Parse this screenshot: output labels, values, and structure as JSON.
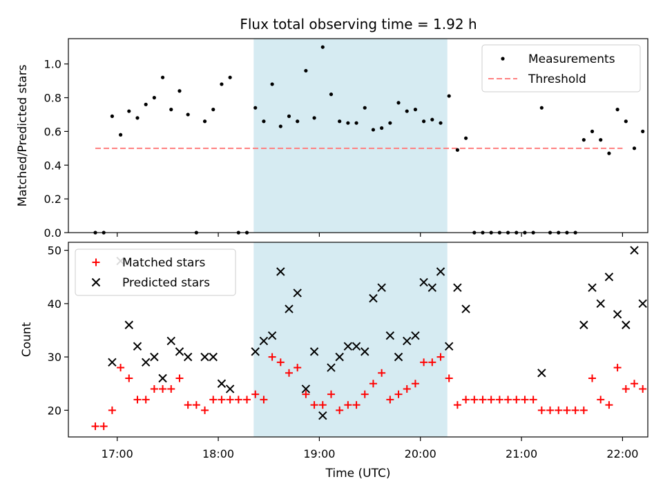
{
  "title": "Flux total observing time = 1.92 h",
  "colors": {
    "shade": "#add8e6",
    "measurement": "#000000",
    "threshold": "#ff7f7f",
    "matched": "#ff0000",
    "predicted": "#000000"
  },
  "chart_data": [
    {
      "type": "scatter",
      "ylabel": "Matched/Predicted stars",
      "ylim": [
        0,
        1.15
      ],
      "yticks": [
        "0.0",
        "0.2",
        "0.4",
        "0.6",
        "0.8",
        "1.0"
      ],
      "xlim": [
        "16:31",
        "22:15"
      ],
      "shaded_span": [
        "18:21",
        "20:16"
      ],
      "legend": {
        "position": "top-right",
        "entries": [
          {
            "label": "Measurements",
            "marker": "dot"
          },
          {
            "label": "Threshold",
            "marker": "dashed-line"
          }
        ]
      },
      "threshold": {
        "label": "Threshold",
        "value": 0.5,
        "x_range": [
          "16:47",
          "22:00"
        ]
      },
      "series": [
        {
          "name": "Measurements",
          "points": [
            [
              "16:47",
              0.0
            ],
            [
              "16:52",
              0.0
            ],
            [
              "16:57",
              0.69
            ],
            [
              "17:02",
              0.58
            ],
            [
              "17:07",
              0.72
            ],
            [
              "17:12",
              0.68
            ],
            [
              "17:17",
              0.76
            ],
            [
              "17:22",
              0.8
            ],
            [
              "17:27",
              0.92
            ],
            [
              "17:32",
              0.73
            ],
            [
              "17:37",
              0.84
            ],
            [
              "17:42",
              0.7
            ],
            [
              "17:47",
              0.0
            ],
            [
              "17:52",
              0.66
            ],
            [
              "17:57",
              0.73
            ],
            [
              "18:02",
              0.88
            ],
            [
              "18:07",
              0.92
            ],
            [
              "18:12",
              0.0
            ],
            [
              "18:17",
              0.0
            ],
            [
              "18:22",
              0.74
            ],
            [
              "18:27",
              0.66
            ],
            [
              "18:32",
              0.88
            ],
            [
              "18:37",
              0.63
            ],
            [
              "18:42",
              0.69
            ],
            [
              "18:47",
              0.66
            ],
            [
              "18:52",
              0.96
            ],
            [
              "18:57",
              0.68
            ],
            [
              "19:02",
              1.1
            ],
            [
              "19:07",
              0.82
            ],
            [
              "19:12",
              0.66
            ],
            [
              "19:17",
              0.65
            ],
            [
              "19:22",
              0.65
            ],
            [
              "19:27",
              0.74
            ],
            [
              "19:32",
              0.61
            ],
            [
              "19:37",
              0.62
            ],
            [
              "19:42",
              0.65
            ],
            [
              "19:47",
              0.77
            ],
            [
              "19:52",
              0.72
            ],
            [
              "19:57",
              0.73
            ],
            [
              "20:02",
              0.66
            ],
            [
              "20:07",
              0.67
            ],
            [
              "20:12",
              0.65
            ],
            [
              "20:17",
              0.81
            ],
            [
              "20:22",
              0.49
            ],
            [
              "20:27",
              0.56
            ],
            [
              "20:32",
              0.0
            ],
            [
              "20:37",
              0.0
            ],
            [
              "20:42",
              0.0
            ],
            [
              "20:47",
              0.0
            ],
            [
              "20:52",
              0.0
            ],
            [
              "20:57",
              0.0
            ],
            [
              "21:02",
              0.0
            ],
            [
              "21:07",
              0.0
            ],
            [
              "21:12",
              0.74
            ],
            [
              "21:17",
              0.0
            ],
            [
              "21:22",
              0.0
            ],
            [
              "21:27",
              0.0
            ],
            [
              "21:32",
              0.0
            ],
            [
              "21:37",
              0.55
            ],
            [
              "21:42",
              0.6
            ],
            [
              "21:47",
              0.55
            ],
            [
              "21:52",
              0.47
            ],
            [
              "21:57",
              0.73
            ],
            [
              "22:02",
              0.66
            ],
            [
              "22:07",
              0.5
            ],
            [
              "22:12",
              0.6
            ]
          ]
        }
      ]
    },
    {
      "type": "scatter",
      "xlabel": "Time (UTC)",
      "ylabel": "Count",
      "ylim": [
        15,
        51.5
      ],
      "yticks": [
        "20",
        "30",
        "40",
        "50"
      ],
      "xlim": [
        "16:31",
        "22:15"
      ],
      "xticks": [
        "17:00",
        "18:00",
        "19:00",
        "20:00",
        "21:00",
        "22:00"
      ],
      "shaded_span": [
        "18:21",
        "20:16"
      ],
      "legend": {
        "position": "top-left",
        "entries": [
          {
            "label": "Matched stars",
            "marker": "plus"
          },
          {
            "label": "Predicted stars",
            "marker": "x"
          }
        ]
      },
      "series": [
        {
          "name": "Matched stars",
          "points": [
            [
              "16:47",
              17
            ],
            [
              "16:52",
              17
            ],
            [
              "16:57",
              20
            ],
            [
              "17:02",
              28
            ],
            [
              "17:07",
              26
            ],
            [
              "17:12",
              22
            ],
            [
              "17:17",
              22
            ],
            [
              "17:22",
              24
            ],
            [
              "17:27",
              24
            ],
            [
              "17:32",
              24
            ],
            [
              "17:37",
              26
            ],
            [
              "17:42",
              21
            ],
            [
              "17:47",
              21
            ],
            [
              "17:52",
              20
            ],
            [
              "17:57",
              22
            ],
            [
              "18:02",
              22
            ],
            [
              "18:07",
              22
            ],
            [
              "18:12",
              22
            ],
            [
              "18:17",
              22
            ],
            [
              "18:22",
              23
            ],
            [
              "18:27",
              22
            ],
            [
              "18:32",
              30
            ],
            [
              "18:37",
              29
            ],
            [
              "18:42",
              27
            ],
            [
              "18:47",
              28
            ],
            [
              "18:52",
              23
            ],
            [
              "18:57",
              21
            ],
            [
              "19:02",
              21
            ],
            [
              "19:07",
              23
            ],
            [
              "19:12",
              20
            ],
            [
              "19:17",
              21
            ],
            [
              "19:22",
              21
            ],
            [
              "19:27",
              23
            ],
            [
              "19:32",
              25
            ],
            [
              "19:37",
              27
            ],
            [
              "19:42",
              22
            ],
            [
              "19:47",
              23
            ],
            [
              "19:52",
              24
            ],
            [
              "19:57",
              25
            ],
            [
              "20:02",
              29
            ],
            [
              "20:07",
              29
            ],
            [
              "20:12",
              30
            ],
            [
              "20:17",
              26
            ],
            [
              "20:22",
              21
            ],
            [
              "20:27",
              22
            ],
            [
              "20:32",
              22
            ],
            [
              "20:37",
              22
            ],
            [
              "20:42",
              22
            ],
            [
              "20:47",
              22
            ],
            [
              "20:52",
              22
            ],
            [
              "20:57",
              22
            ],
            [
              "21:02",
              22
            ],
            [
              "21:07",
              22
            ],
            [
              "21:12",
              20
            ],
            [
              "21:17",
              20
            ],
            [
              "21:22",
              20
            ],
            [
              "21:27",
              20
            ],
            [
              "21:32",
              20
            ],
            [
              "21:37",
              20
            ],
            [
              "21:42",
              26
            ],
            [
              "21:47",
              22
            ],
            [
              "21:52",
              21
            ],
            [
              "21:57",
              28
            ],
            [
              "22:02",
              24
            ],
            [
              "22:07",
              25
            ],
            [
              "22:12",
              24
            ]
          ]
        },
        {
          "name": "Predicted stars",
          "points": [
            [
              "16:57",
              29
            ],
            [
              "17:02",
              48
            ],
            [
              "17:07",
              36
            ],
            [
              "17:12",
              32
            ],
            [
              "17:17",
              29
            ],
            [
              "17:22",
              30
            ],
            [
              "17:27",
              26
            ],
            [
              "17:32",
              33
            ],
            [
              "17:37",
              31
            ],
            [
              "17:42",
              30
            ],
            [
              "17:52",
              30
            ],
            [
              "17:57",
              30
            ],
            [
              "18:02",
              25
            ],
            [
              "18:07",
              24
            ],
            [
              "18:22",
              31
            ],
            [
              "18:27",
              33
            ],
            [
              "18:32",
              34
            ],
            [
              "18:37",
              46
            ],
            [
              "18:42",
              39
            ],
            [
              "18:47",
              42
            ],
            [
              "18:52",
              24
            ],
            [
              "18:57",
              31
            ],
            [
              "19:02",
              19
            ],
            [
              "19:07",
              28
            ],
            [
              "19:12",
              30
            ],
            [
              "19:17",
              32
            ],
            [
              "19:22",
              32
            ],
            [
              "19:27",
              31
            ],
            [
              "19:32",
              41
            ],
            [
              "19:37",
              43
            ],
            [
              "19:42",
              34
            ],
            [
              "19:47",
              30
            ],
            [
              "19:52",
              33
            ],
            [
              "19:57",
              34
            ],
            [
              "20:02",
              44
            ],
            [
              "20:07",
              43
            ],
            [
              "20:12",
              46
            ],
            [
              "20:17",
              32
            ],
            [
              "20:22",
              43
            ],
            [
              "20:27",
              39
            ],
            [
              "21:12",
              27
            ],
            [
              "21:37",
              36
            ],
            [
              "21:42",
              43
            ],
            [
              "21:47",
              40
            ],
            [
              "21:52",
              45
            ],
            [
              "21:57",
              38
            ],
            [
              "22:02",
              36
            ],
            [
              "22:07",
              50
            ],
            [
              "22:12",
              40
            ]
          ]
        }
      ]
    }
  ]
}
